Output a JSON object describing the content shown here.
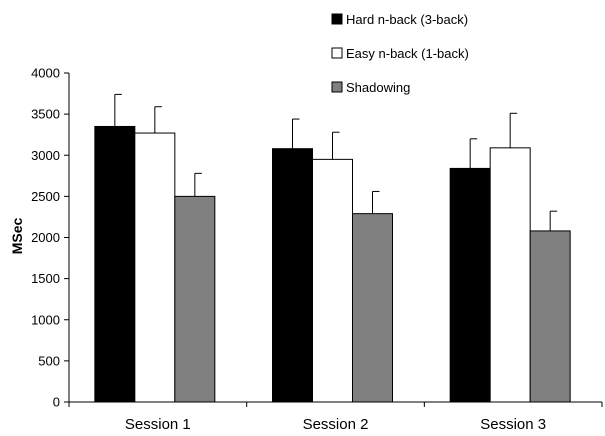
{
  "chart_data": {
    "type": "bar",
    "categories": [
      "Session 1",
      "Session 2",
      "Session 3"
    ],
    "series": [
      {
        "name": "Hard n-back (3-back)",
        "values": [
          3350,
          3080,
          2840
        ],
        "errors": [
          390,
          360,
          360
        ],
        "color": "#000000"
      },
      {
        "name": "Easy n-back (1-back)",
        "values": [
          3270,
          2950,
          3090
        ],
        "errors": [
          320,
          330,
          420
        ],
        "color": "#ffffff"
      },
      {
        "name": "Shadowing",
        "values": [
          2500,
          2290,
          2080
        ],
        "errors": [
          280,
          270,
          240
        ],
        "color": "#808080"
      }
    ],
    "title": "",
    "xlabel": "",
    "ylabel": "MSec",
    "ylim": [
      0,
      4000
    ],
    "yticks": [
      "0",
      "500",
      "1000",
      "1500",
      "2000",
      "2500",
      "3000",
      "3500",
      "4000"
    ],
    "grid": false,
    "legend": "top-right"
  }
}
